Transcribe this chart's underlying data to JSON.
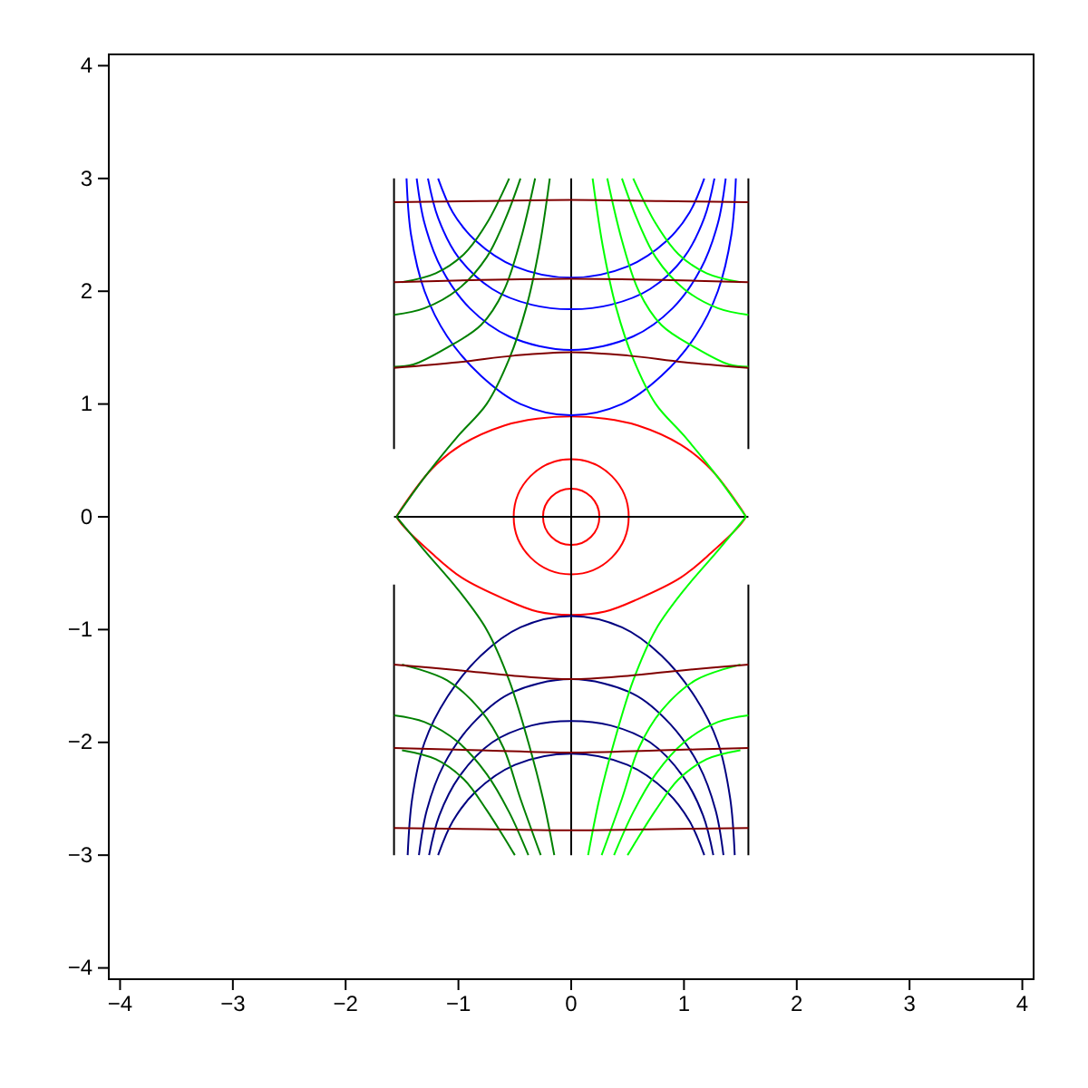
{
  "chart_data": {
    "type": "line",
    "xlim": [
      -4.1,
      4.1
    ],
    "ylim": [
      -4.1,
      4.1
    ],
    "xticks": [
      {
        "value": -4,
        "label": "−4"
      },
      {
        "value": -3,
        "label": "−3"
      },
      {
        "value": -2,
        "label": "−2"
      },
      {
        "value": -1,
        "label": "−1"
      },
      0,
      1,
      2,
      3,
      4
    ],
    "yticks": [
      {
        "value": -4,
        "label": "−4"
      },
      {
        "value": -3,
        "label": "−3"
      },
      {
        "value": -2,
        "label": "−2"
      },
      {
        "value": -1,
        "label": "−1"
      },
      0,
      1,
      2,
      3,
      4
    ],
    "marker": "none",
    "line_style": "solid",
    "series": [
      {
        "color": "#000000",
        "x": [
          -1.571,
          -1.571
        ],
        "values": [
          3.0,
          0.6
        ]
      },
      {
        "color": "#000000",
        "x": [
          -1.571,
          -1.571
        ],
        "values": [
          -0.6,
          -3.0
        ]
      },
      {
        "color": "#000000",
        "x": [
          1.571,
          1.571
        ],
        "values": [
          3.0,
          0.6
        ]
      },
      {
        "color": "#000000",
        "x": [
          1.571,
          1.571
        ],
        "values": [
          -0.6,
          -3.0
        ]
      },
      {
        "color": "#000000",
        "x": [
          0,
          0
        ],
        "values": [
          3.0,
          -3.0
        ]
      },
      {
        "color": "#000000",
        "x": [
          -1.571,
          1.571
        ],
        "values": [
          0,
          0
        ]
      },
      {
        "color": "#0000ff",
        "x": [
          -1.46,
          -1.42,
          -1.3,
          -1.1,
          -0.8,
          -0.45,
          0,
          0.45,
          0.8,
          1.1,
          1.3,
          1.42,
          1.46
        ],
        "values": [
          3.0,
          2.5,
          2.0,
          1.6,
          1.25,
          1.0,
          0.9,
          1.0,
          1.25,
          1.6,
          2.0,
          2.5,
          3.0
        ]
      },
      {
        "color": "#0000ff",
        "x": [
          -1.37,
          -1.3,
          -1.15,
          -0.9,
          -0.55,
          0,
          0.55,
          0.9,
          1.15,
          1.3,
          1.37
        ],
        "values": [
          3.0,
          2.6,
          2.2,
          1.85,
          1.6,
          1.48,
          1.6,
          1.85,
          2.2,
          2.6,
          3.0
        ]
      },
      {
        "color": "#0000ff",
        "x": [
          -1.27,
          -1.18,
          -1.0,
          -0.7,
          -0.35,
          0,
          0.35,
          0.7,
          1.0,
          1.18,
          1.27
        ],
        "values": [
          3.0,
          2.65,
          2.3,
          2.02,
          1.88,
          1.84,
          1.88,
          2.02,
          2.3,
          2.65,
          3.0
        ]
      },
      {
        "color": "#0000ff",
        "x": [
          -1.18,
          -1.05,
          -0.85,
          -0.5,
          0,
          0.5,
          0.85,
          1.05,
          1.18
        ],
        "values": [
          3.0,
          2.7,
          2.45,
          2.22,
          2.12,
          2.22,
          2.45,
          2.7,
          3.0
        ]
      },
      {
        "color": "#000080",
        "x": [
          -1.45,
          -1.41,
          -1.3,
          -1.1,
          -0.8,
          -0.45,
          0,
          0.45,
          0.8,
          1.1,
          1.3,
          1.41,
          1.45
        ],
        "values": [
          -3.0,
          -2.5,
          -2.0,
          -1.6,
          -1.23,
          -0.98,
          -0.88,
          -0.98,
          -1.23,
          -1.6,
          -2.0,
          -2.5,
          -3.0
        ]
      },
      {
        "color": "#000080",
        "x": [
          -1.35,
          -1.28,
          -1.13,
          -0.88,
          -0.55,
          0,
          0.55,
          0.88,
          1.13,
          1.28,
          1.35
        ],
        "values": [
          -3.0,
          -2.6,
          -2.2,
          -1.84,
          -1.57,
          -1.44,
          -1.57,
          -1.84,
          -2.2,
          -2.6,
          -3.0
        ]
      },
      {
        "color": "#000080",
        "x": [
          -1.26,
          -1.17,
          -0.99,
          -0.7,
          -0.35,
          0,
          0.35,
          0.7,
          0.99,
          1.17,
          1.26
        ],
        "values": [
          -3.0,
          -2.65,
          -2.3,
          -2.0,
          -1.85,
          -1.81,
          -1.85,
          -2.0,
          -2.3,
          -2.65,
          -3.0
        ]
      },
      {
        "color": "#000080",
        "x": [
          -1.18,
          -1.05,
          -0.85,
          -0.5,
          0,
          0.5,
          0.85,
          1.05,
          1.18
        ],
        "values": [
          -3.0,
          -2.7,
          -2.44,
          -2.2,
          -2.1,
          -2.2,
          -2.44,
          -2.7,
          -3.0
        ]
      },
      {
        "color": "#008000",
        "x": [
          -1.55,
          -1.3,
          -1.0,
          -0.75,
          -0.55,
          -0.4,
          -0.28,
          -0.19
        ],
        "values": [
          0,
          0.35,
          0.72,
          1.0,
          1.4,
          1.85,
          2.4,
          3.0
        ]
      },
      {
        "color": "#008000",
        "x": [
          -1.57,
          -1.4,
          -1.1,
          -0.8,
          -0.6,
          -0.45,
          -0.32
        ],
        "values": [
          1.33,
          1.35,
          1.5,
          1.7,
          2.0,
          2.45,
          3.0
        ]
      },
      {
        "color": "#008000",
        "x": [
          -1.57,
          -1.3,
          -1.0,
          -0.75,
          -0.58,
          -0.45
        ],
        "values": [
          1.79,
          1.85,
          2.02,
          2.3,
          2.65,
          3.0
        ]
      },
      {
        "color": "#008000",
        "x": [
          -1.5,
          -1.2,
          -0.95,
          -0.75,
          -0.55
        ],
        "values": [
          2.08,
          2.16,
          2.33,
          2.6,
          3.0
        ]
      },
      {
        "color": "#00ff00",
        "x": [
          1.55,
          1.3,
          1.0,
          0.75,
          0.55,
          0.4,
          0.28,
          0.19
        ],
        "values": [
          0,
          0.35,
          0.72,
          1.0,
          1.4,
          1.85,
          2.4,
          3.0
        ]
      },
      {
        "color": "#00ff00",
        "x": [
          1.57,
          1.4,
          1.1,
          0.8,
          0.6,
          0.45,
          0.32
        ],
        "values": [
          1.33,
          1.35,
          1.5,
          1.7,
          2.0,
          2.45,
          3.0
        ]
      },
      {
        "color": "#00ff00",
        "x": [
          1.57,
          1.3,
          1.0,
          0.75,
          0.58,
          0.45
        ],
        "values": [
          1.79,
          1.85,
          2.02,
          2.3,
          2.65,
          3.0
        ]
      },
      {
        "color": "#00ff00",
        "x": [
          1.5,
          1.2,
          0.95,
          0.75,
          0.55
        ],
        "values": [
          2.08,
          2.16,
          2.33,
          2.6,
          3.0
        ]
      },
      {
        "color": "#008000",
        "x": [
          -1.55,
          -1.3,
          -1.0,
          -0.75,
          -0.55,
          -0.38,
          -0.25,
          -0.15
        ],
        "values": [
          0,
          -0.3,
          -0.65,
          -1.0,
          -1.45,
          -2.0,
          -2.5,
          -3.0
        ]
      },
      {
        "color": "#008000",
        "x": [
          -1.5,
          -1.1,
          -0.8,
          -0.6,
          -0.45,
          -0.27
        ],
        "values": [
          -1.31,
          -1.45,
          -1.72,
          -2.05,
          -2.5,
          -3.0
        ]
      },
      {
        "color": "#008000",
        "x": [
          -1.57,
          -1.3,
          -1.0,
          -0.75,
          -0.55,
          -0.38
        ],
        "values": [
          -1.76,
          -1.82,
          -2.0,
          -2.28,
          -2.62,
          -3.0
        ]
      },
      {
        "color": "#008000",
        "x": [
          -1.5,
          -1.2,
          -0.95,
          -0.75,
          -0.5
        ],
        "values": [
          -2.07,
          -2.15,
          -2.33,
          -2.6,
          -3.0
        ]
      },
      {
        "color": "#00ff00",
        "x": [
          1.55,
          1.3,
          1.0,
          0.75,
          0.55,
          0.38,
          0.25,
          0.15
        ],
        "values": [
          0,
          -0.3,
          -0.65,
          -1.0,
          -1.45,
          -2.0,
          -2.5,
          -3.0
        ]
      },
      {
        "color": "#00ff00",
        "x": [
          1.5,
          1.1,
          0.8,
          0.6,
          0.45,
          0.27
        ],
        "values": [
          -1.31,
          -1.45,
          -1.72,
          -2.05,
          -2.5,
          -3.0
        ]
      },
      {
        "color": "#00ff00",
        "x": [
          1.57,
          1.3,
          1.0,
          0.75,
          0.55,
          0.38
        ],
        "values": [
          -1.76,
          -1.82,
          -2.0,
          -2.28,
          -2.62,
          -3.0
        ]
      },
      {
        "color": "#00ff00",
        "x": [
          1.5,
          1.2,
          0.95,
          0.75,
          0.5
        ],
        "values": [
          -2.07,
          -2.15,
          -2.33,
          -2.6,
          -3.0
        ]
      },
      {
        "color": "#800000",
        "x": [
          -1.571,
          -1.0,
          -0.5,
          0,
          0.5,
          1.0,
          1.571
        ],
        "values": [
          1.32,
          1.37,
          1.43,
          1.46,
          1.43,
          1.37,
          1.32
        ]
      },
      {
        "color": "#800000",
        "x": [
          -1.571,
          -0.8,
          0,
          0.8,
          1.571
        ],
        "values": [
          2.08,
          2.1,
          2.11,
          2.1,
          2.08
        ]
      },
      {
        "color": "#800000",
        "x": [
          -1.571,
          -0.8,
          0,
          0.8,
          1.571
        ],
        "values": [
          2.79,
          2.8,
          2.81,
          2.8,
          2.79
        ]
      },
      {
        "color": "#800000",
        "x": [
          -1.571,
          -1.0,
          -0.5,
          0,
          0.5,
          1.0,
          1.571
        ],
        "values": [
          -1.31,
          -1.36,
          -1.41,
          -1.44,
          -1.41,
          -1.36,
          -1.31
        ]
      },
      {
        "color": "#800000",
        "x": [
          -1.571,
          -0.8,
          0,
          0.8,
          1.571
        ],
        "values": [
          -2.05,
          -2.07,
          -2.09,
          -2.07,
          -2.05
        ]
      },
      {
        "color": "#800000",
        "x": [
          -1.571,
          -0.8,
          0,
          0.8,
          1.571
        ],
        "values": [
          -2.76,
          -2.77,
          -2.78,
          -2.77,
          -2.76
        ]
      }
    ]
  }
}
